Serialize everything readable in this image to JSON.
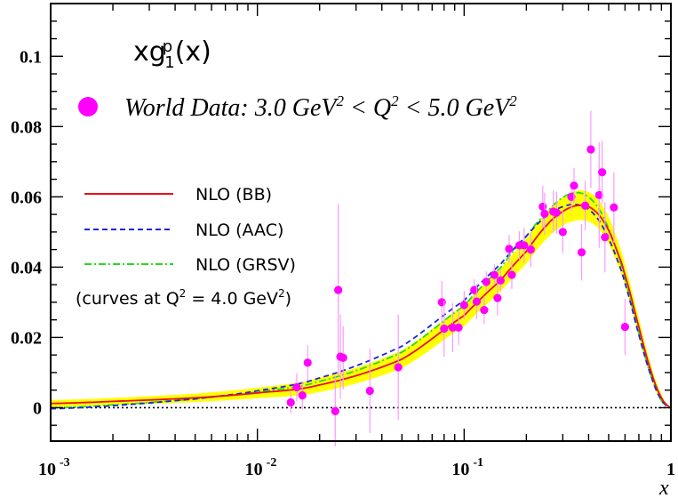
{
  "chart_data": {
    "type": "scatter",
    "title": "xg",
    "title_sub": "1",
    "title_sup": "p",
    "title_arg": "(x)",
    "xlabel": "x",
    "ylabel": "",
    "xscale": "log",
    "xlim": [
      0.001,
      1
    ],
    "ylim": [
      -0.0095,
      0.115
    ],
    "x_ticks": [
      {
        "base": "10",
        "exp": "-3",
        "value": 0.001
      },
      {
        "base": "10",
        "exp": "-2",
        "value": 0.01
      },
      {
        "base": "10",
        "exp": "-1",
        "value": 0.1
      },
      {
        "base": "1",
        "exp": "",
        "value": 1
      }
    ],
    "y_ticks": [
      {
        "label": "0",
        "value": 0
      },
      {
        "label": "0.02",
        "value": 0.02
      },
      {
        "label": "0.04",
        "value": 0.04
      },
      {
        "label": "0.06",
        "value": 0.06
      },
      {
        "label": "0.08",
        "value": 0.08
      },
      {
        "label": "0.1",
        "value": 0.1
      }
    ],
    "data_legend": {
      "label_prefix": "World Data: 3.0 GeV",
      "sup1": "2",
      "mid1": " < Q",
      "sup2": "2",
      "mid2": " < 5.0 GeV",
      "sup3": "2"
    },
    "legend": {
      "placement": "upper-left",
      "entries": [
        {
          "label": "NLO (BB)",
          "color": "#e8101a",
          "style": "solid"
        },
        {
          "label": "NLO (AAC)",
          "color": "#2222dd",
          "style": "dashed"
        },
        {
          "label": "NLO (GRSV)",
          "color": "#22dd22",
          "style": "dashdot"
        }
      ],
      "note_prefix": "(curves at Q",
      "note_sup": "2",
      "note_mid": " = 4.0 GeV",
      "note_sup2": "2",
      "note_suffix": ")"
    },
    "colors": {
      "band": "#ffff00",
      "data": "#ff00ff",
      "error_bar": "#ff99ff"
    },
    "series": [
      {
        "name": "World Data",
        "kind": "points",
        "points": [
          {
            "x": 0.0145,
            "y": 0.0015,
            "err": 0.003
          },
          {
            "x": 0.0155,
            "y": 0.0058,
            "err": 0.004
          },
          {
            "x": 0.0165,
            "y": 0.0035,
            "err": 0.004
          },
          {
            "x": 0.0175,
            "y": 0.0128,
            "err": 0.005
          },
          {
            "x": 0.0238,
            "y": -0.001,
            "err": 0.01
          },
          {
            "x": 0.0246,
            "y": 0.0335,
            "err": 0.0245
          },
          {
            "x": 0.0252,
            "y": 0.0145,
            "err": 0.012
          },
          {
            "x": 0.026,
            "y": 0.0142,
            "err": 0.009
          },
          {
            "x": 0.035,
            "y": 0.0048,
            "err": 0.012
          },
          {
            "x": 0.048,
            "y": 0.0115,
            "err": 0.015
          },
          {
            "x": 0.078,
            "y": 0.03,
            "err": 0.006
          },
          {
            "x": 0.08,
            "y": 0.0225,
            "err": 0.008
          },
          {
            "x": 0.088,
            "y": 0.0228,
            "err": 0.007
          },
          {
            "x": 0.094,
            "y": 0.0228,
            "err": 0.005
          },
          {
            "x": 0.1,
            "y": 0.0292,
            "err": 0.004
          },
          {
            "x": 0.112,
            "y": 0.0335,
            "err": 0.003
          },
          {
            "x": 0.115,
            "y": 0.0302,
            "err": 0.005
          },
          {
            "x": 0.125,
            "y": 0.0278,
            "err": 0.004
          },
          {
            "x": 0.128,
            "y": 0.0358,
            "err": 0.003
          },
          {
            "x": 0.14,
            "y": 0.0378,
            "err": 0.003
          },
          {
            "x": 0.145,
            "y": 0.0312,
            "err": 0.005
          },
          {
            "x": 0.15,
            "y": 0.0362,
            "err": 0.003
          },
          {
            "x": 0.165,
            "y": 0.0452,
            "err": 0.004
          },
          {
            "x": 0.17,
            "y": 0.0378,
            "err": 0.004
          },
          {
            "x": 0.185,
            "y": 0.0462,
            "err": 0.004
          },
          {
            "x": 0.195,
            "y": 0.0462,
            "err": 0.005
          },
          {
            "x": 0.21,
            "y": 0.045,
            "err": 0.005
          },
          {
            "x": 0.24,
            "y": 0.0572,
            "err": 0.006
          },
          {
            "x": 0.245,
            "y": 0.0552,
            "err": 0.006
          },
          {
            "x": 0.27,
            "y": 0.0558,
            "err": 0.006
          },
          {
            "x": 0.28,
            "y": 0.0555,
            "err": 0.006
          },
          {
            "x": 0.3,
            "y": 0.05,
            "err": 0.006
          },
          {
            "x": 0.33,
            "y": 0.06,
            "err": 0.004
          },
          {
            "x": 0.34,
            "y": 0.0632,
            "err": 0.005
          },
          {
            "x": 0.37,
            "y": 0.0442,
            "err": 0.008
          },
          {
            "x": 0.385,
            "y": 0.0575,
            "err": 0.007
          },
          {
            "x": 0.41,
            "y": 0.0735,
            "err": 0.011
          },
          {
            "x": 0.45,
            "y": 0.0605,
            "err": 0.015
          },
          {
            "x": 0.465,
            "y": 0.067,
            "err": 0.009
          },
          {
            "x": 0.48,
            "y": 0.0485,
            "err": 0.01
          },
          {
            "x": 0.53,
            "y": 0.057,
            "err": 0.01
          },
          {
            "x": 0.6,
            "y": 0.023,
            "err": 0.008
          }
        ]
      },
      {
        "name": "NLO (BB)",
        "kind": "line",
        "x": [
          0.001,
          0.002,
          0.005,
          0.01,
          0.02,
          0.05,
          0.1,
          0.15,
          0.2,
          0.25,
          0.3,
          0.35,
          0.4,
          0.45,
          0.5,
          0.55,
          0.6,
          0.7,
          0.8,
          0.9,
          1.0
        ],
        "y": [
          0.0012,
          0.0018,
          0.0028,
          0.0042,
          0.0065,
          0.0138,
          0.0262,
          0.0362,
          0.0445,
          0.0518,
          0.0558,
          0.0575,
          0.0572,
          0.0548,
          0.0505,
          0.0445,
          0.0375,
          0.023,
          0.0105,
          0.0028,
          0.0
        ],
        "band_width": [
          0.001,
          0.001,
          0.0012,
          0.0015,
          0.002,
          0.0025,
          0.003,
          0.0032,
          0.0035,
          0.0038,
          0.004,
          0.0042,
          0.0042,
          0.004,
          0.0038,
          0.0035,
          0.003,
          0.0025,
          0.0018,
          0.001,
          0.0
        ]
      },
      {
        "name": "NLO (AAC)",
        "kind": "line",
        "x": [
          0.001,
          0.002,
          0.005,
          0.01,
          0.02,
          0.05,
          0.1,
          0.15,
          0.2,
          0.25,
          0.3,
          0.35,
          0.4,
          0.45,
          0.5,
          0.55,
          0.6,
          0.7,
          0.8,
          0.9,
          1.0
        ],
        "y": [
          -0.0003,
          0.0006,
          0.0025,
          0.0048,
          0.0085,
          0.0175,
          0.0305,
          0.0408,
          0.0488,
          0.0545,
          0.0572,
          0.0578,
          0.0565,
          0.0532,
          0.0482,
          0.0422,
          0.0352,
          0.0208,
          0.0092,
          0.0022,
          0.0
        ]
      },
      {
        "name": "NLO (GRSV)",
        "kind": "line",
        "x": [
          0.001,
          0.002,
          0.005,
          0.01,
          0.02,
          0.05,
          0.1,
          0.15,
          0.2,
          0.25,
          0.3,
          0.35,
          0.4,
          0.45,
          0.5,
          0.55,
          0.6,
          0.7,
          0.8,
          0.9,
          1.0
        ],
        "y": [
          -0.0001,
          0.0008,
          0.0025,
          0.0045,
          0.0075,
          0.0158,
          0.029,
          0.0398,
          0.0488,
          0.0555,
          0.0598,
          0.0612,
          0.06,
          0.0565,
          0.051,
          0.0442,
          0.0365,
          0.0212,
          0.0092,
          0.002,
          0.0
        ]
      }
    ]
  }
}
